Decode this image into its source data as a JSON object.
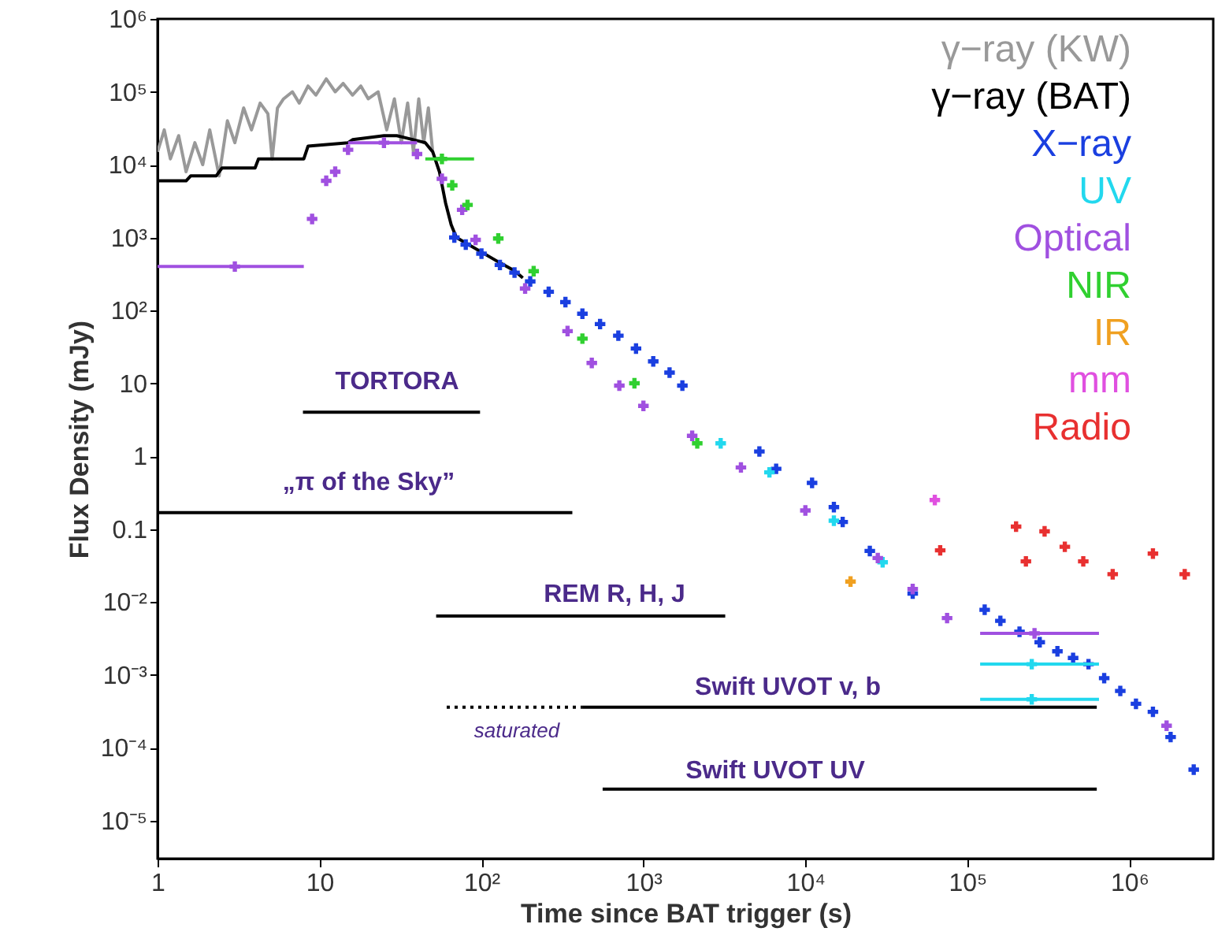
{
  "chart_data": {
    "type": "scatter",
    "xlabel": "Time since BAT trigger (s)",
    "ylabel": "Flux Density (mJy)",
    "log": "xy",
    "grid": false,
    "legend": "top right",
    "marker": "cross",
    "xlim": [
      1,
      3300000
    ],
    "ylim": [
      3e-06,
      1000000
    ],
    "xticks": [
      1,
      10,
      {
        "value": 100,
        "label": "10²"
      },
      {
        "value": 1000,
        "label": "10³"
      },
      {
        "value": 10000,
        "label": "10⁴"
      },
      {
        "value": 100000,
        "label": "10⁵"
      },
      {
        "value": 1000000,
        "label": "10⁶"
      }
    ],
    "yticks": [
      {
        "value": 1000000,
        "label": "10⁶"
      },
      {
        "value": 100000,
        "label": "10⁵"
      },
      {
        "value": 10000,
        "label": "10⁴"
      },
      {
        "value": 1000,
        "label": "10³"
      },
      {
        "value": 100,
        "label": "10²"
      },
      10,
      1,
      0.1,
      {
        "value": 0.01,
        "label": "10⁻²"
      },
      {
        "value": 0.001,
        "label": "10⁻³"
      },
      {
        "value": 0.0001,
        "label": "10⁻⁴"
      },
      {
        "value": 1e-05,
        "label": "10⁻⁵"
      }
    ],
    "series": [
      {
        "name": "γ−ray (KW)",
        "type": "line",
        "marker": "none",
        "color": "#999999",
        "x": [
          1,
          1.1,
          1.2,
          1.35,
          1.5,
          1.7,
          1.9,
          2.1,
          2.4,
          2.7,
          3,
          3.4,
          3.8,
          4.3,
          4.8,
          5.1,
          5.5,
          6,
          6.8,
          7.5,
          8.5,
          9.5,
          11,
          12.5,
          14,
          16,
          18,
          20,
          23,
          26,
          29,
          32,
          35,
          38,
          41,
          44,
          47,
          50
        ],
        "values": [
          15000,
          30000,
          12000,
          25000,
          8000,
          20000,
          10000,
          30000,
          7000,
          40000,
          20000,
          60000,
          30000,
          70000,
          50000,
          12000,
          60000,
          80000,
          100000,
          70000,
          120000,
          90000,
          150000,
          100000,
          130000,
          90000,
          120000,
          80000,
          100000,
          30000,
          80000,
          20000,
          70000,
          15000,
          80000,
          20000,
          60000,
          15000
        ]
      },
      {
        "name": "γ−ray (BAT)",
        "type": "line",
        "marker": "none",
        "color": "#000000",
        "x": [
          1,
          1.5,
          1.6,
          2.3,
          2.5,
          4,
          4.2,
          8,
          8.5,
          15,
          16,
          25,
          30,
          45,
          50,
          55,
          60,
          65,
          70,
          130,
          160,
          180
        ],
        "values": [
          6000,
          6000,
          7000,
          7000,
          9000,
          9000,
          12000,
          12000,
          18000,
          20000,
          22000,
          25000,
          25000,
          20000,
          15000,
          8000,
          3000,
          1500,
          1000,
          450,
          350,
          280
        ]
      },
      {
        "name": "X−ray",
        "color": "#1a3fe0",
        "x": [
          68,
          80,
          100,
          130,
          160,
          200,
          260,
          330,
          420,
          540,
          700,
          900,
          1150,
          1450,
          1740,
          5200,
          6600,
          11000,
          15000,
          17000,
          25000,
          46000,
          128000,
          160000,
          210000,
          280000,
          360000,
          450000,
          560000,
          700000,
          880000,
          1100000,
          1400000,
          1800000,
          2500000
        ],
        "values": [
          1000,
          800,
          600,
          420,
          330,
          250,
          180,
          130,
          90,
          65,
          45,
          30,
          20,
          14,
          9.3,
          1.16,
          0.67,
          0.43,
          0.2,
          0.125,
          0.05,
          0.013,
          0.0078,
          0.0055,
          0.0039,
          0.0028,
          0.0021,
          0.0017,
          0.0014,
          0.0009,
          0.0006,
          0.0004,
          0.00031,
          0.00014,
          5e-05
        ]
      },
      {
        "name": "UV",
        "color": "#22d8ee",
        "x": [
          3000,
          6000,
          15000,
          30000,
          250000,
          250000
        ],
        "values": [
          1.5,
          0.6,
          0.13,
          0.035,
          0.0014,
          0.00046
        ],
        "xerrors": [
          null,
          null,
          null,
          null,
          [
            120000,
            650000
          ],
          [
            120000,
            650000
          ]
        ]
      },
      {
        "name": "Optical",
        "color": "#a050e0",
        "x": [
          3,
          9,
          11,
          12.5,
          15,
          25,
          40,
          57,
          76,
          92,
          186,
          340,
          480,
          710,
          1000,
          2000,
          4000,
          10000,
          28000,
          46000,
          75000,
          260000,
          1700000
        ],
        "values": [
          400,
          1800,
          6000,
          8000,
          16000,
          20000,
          14000,
          6400,
          2400,
          930,
          200,
          52,
          19,
          9.3,
          4.9,
          1.9,
          0.7,
          0.18,
          0.04,
          0.015,
          0.006,
          0.0037,
          0.0002
        ],
        "xerrors": [
          [
            1,
            8
          ],
          null,
          null,
          null,
          null,
          [
            15,
            40
          ],
          null,
          null,
          null,
          null,
          null,
          null,
          null,
          null,
          null,
          null,
          null,
          null,
          null,
          null,
          null,
          [
            120000,
            650000
          ],
          null
        ]
      },
      {
        "name": "NIR",
        "color": "#30d030",
        "x": [
          57,
          66,
          82,
          127,
          210,
          420,
          880,
          2150
        ],
        "values": [
          12000,
          5200,
          2800,
          970,
          345,
          41,
          10,
          1.5
        ],
        "xerrors": [
          [
            45,
            90
          ],
          null,
          null,
          null,
          null,
          null,
          null,
          null
        ]
      },
      {
        "name": "IR",
        "color": "#f0a020",
        "x": [
          19000
        ],
        "values": [
          0.019
        ]
      },
      {
        "name": "mm",
        "color": "#e050e0",
        "x": [
          63000
        ],
        "values": [
          0.25
        ]
      },
      {
        "name": "Radio",
        "color": "#e83030",
        "x": [
          68000,
          200000,
          230000,
          300000,
          400000,
          520000,
          790000,
          1400000,
          2200000
        ],
        "values": [
          0.051,
          0.108,
          0.036,
          0.093,
          0.057,
          0.036,
          0.024,
          0.046,
          0.024
        ]
      },
      {
        "type": "line",
        "marker": "none",
        "color": "#000000",
        "x": [
          7.9,
          98
        ],
        "values": [
          4,
          4
        ]
      },
      {
        "type": "line",
        "marker": "none",
        "color": "#000000",
        "x": [
          1,
          364
        ],
        "values": [
          0.168,
          0.168
        ]
      },
      {
        "type": "line",
        "marker": "none",
        "color": "#000000",
        "x": [
          52.5,
          3200
        ],
        "values": [
          0.0064,
          0.0064
        ]
      },
      {
        "type": "line",
        "marker": "none",
        "color": "#000000",
        "line_style": "dotted",
        "x": [
          61,
          415
        ],
        "values": [
          0.00036,
          0.00036
        ]
      },
      {
        "type": "line",
        "marker": "none",
        "color": "#000000",
        "x": [
          415,
          630000
        ],
        "values": [
          0.00036,
          0.00036
        ]
      },
      {
        "type": "line",
        "marker": "none",
        "color": "#000000",
        "x": [
          560,
          630000
        ],
        "values": [
          2.7e-05,
          2.7e-05
        ]
      }
    ],
    "annotations": [
      "TORTORA",
      "„π of the Sky”",
      "REM R, H, J",
      "Swift UVOT v, b",
      "saturated",
      "Swift UVOT UV"
    ]
  }
}
